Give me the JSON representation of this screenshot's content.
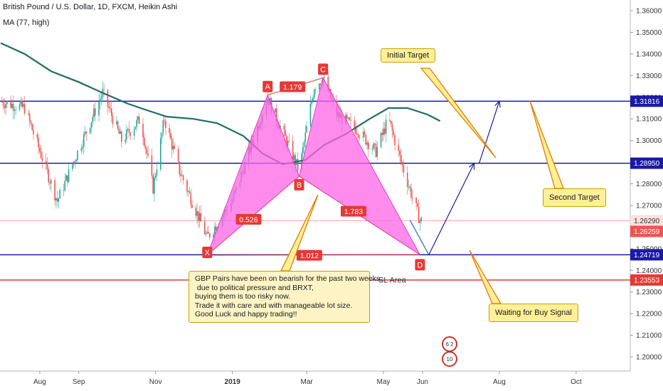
{
  "header": {
    "title": "British Pound / U.S. Dollar, 1D, FXCM, Heikin Ashi",
    "indicator": "MA (77, high)"
  },
  "chart_data": {
    "type": "candlestick",
    "instrument": "GBPUSD",
    "y_axis": {
      "position": "right",
      "range": [
        1.1942,
        1.3658
      ],
      "ticks": [
        1.36,
        1.35,
        1.34,
        1.33,
        1.32,
        1.31,
        1.3,
        1.29,
        1.28,
        1.27,
        1.26,
        1.25,
        1.24,
        1.23,
        1.22,
        1.21,
        1.2
      ],
      "tick_labels": [
        "1.36000",
        "1.35000",
        "1.34000",
        "1.33000",
        "1.32000",
        "1.31000",
        "1.30000",
        "1.29000",
        "1.28000",
        "1.27000",
        "1.26000",
        "1.25000",
        "1.24000",
        "1.23000",
        "1.22000",
        "1.21000",
        "1.20000"
      ]
    },
    "x_axis": {
      "labels": [
        "Aug",
        "Sep",
        "Nov",
        "2019",
        "Mar",
        "May",
        "Jun",
        "Aug",
        "Oct"
      ],
      "bold_labels": [
        "2019"
      ],
      "label_dates": [
        "2018-08-01",
        "2018-09-01",
        "2018-11-01",
        "2019-01-01",
        "2019-03-01",
        "2019-05-01",
        "2019-06-01",
        "2019-08-01",
        "2019-10-01"
      ]
    },
    "candles": {
      "start_date": "2018-07-01",
      "end_date": "2019-05-31",
      "up_color": "#26a69a",
      "down_color": "#ef5350"
    },
    "moving_average": {
      "label": "MA (77, high)",
      "color": "#1f6e5e",
      "points": [
        [
          "2018-07-01",
          1.345
        ],
        [
          "2018-07-20",
          1.34
        ],
        [
          "2018-08-10",
          1.332
        ],
        [
          "2018-09-01",
          1.327
        ],
        [
          "2018-09-20",
          1.322
        ],
        [
          "2018-10-10",
          1.317
        ],
        [
          "2018-10-25",
          1.314
        ],
        [
          "2018-11-10",
          1.311
        ],
        [
          "2018-12-01",
          1.31
        ],
        [
          "2018-12-20",
          1.308
        ],
        [
          "2019-01-10",
          1.302
        ],
        [
          "2019-01-25",
          1.294
        ],
        [
          "2019-02-10",
          1.289
        ],
        [
          "2019-02-28",
          1.291
        ],
        [
          "2019-03-15",
          1.298
        ],
        [
          "2019-04-01",
          1.303
        ],
        [
          "2019-04-20",
          1.31
        ],
        [
          "2019-05-05",
          1.315
        ],
        [
          "2019-05-20",
          1.315
        ],
        [
          "2019-06-05",
          1.312
        ],
        [
          "2019-06-15",
          1.309
        ]
      ]
    },
    "horizontal_lines": [
      {
        "price": 1.31816,
        "color": "#1a1aa6",
        "label": "1.31816"
      },
      {
        "price": 1.2895,
        "color": "#1a1aa6",
        "label": "1.28950"
      },
      {
        "price": 1.24719,
        "color": "#1a1aa6",
        "label": "1.24719"
      },
      {
        "price": 1.23553,
        "color": "#e53935",
        "label": "1.23553"
      },
      {
        "price": 1.2629,
        "color": "#f7a6a6",
        "label": "1.26290"
      }
    ],
    "price_labels": [
      {
        "price": 1.26259,
        "label": "1.26259",
        "color": "#ef5350"
      }
    ],
    "harmonic_pattern": {
      "fill_color": "#ff66e6",
      "points": {
        "X": {
          "date": "2018-12-12",
          "price": 1.247
        },
        "A": {
          "date": "2019-01-29",
          "price": 1.321
        },
        "B": {
          "date": "2019-02-23",
          "price": 1.2835
        },
        "C": {
          "date": "2019-03-14",
          "price": 1.329
        },
        "D": {
          "date": "2019-05-30",
          "price": 1.2472
        }
      },
      "point_labels": [
        "X",
        "A",
        "B",
        "C",
        "D"
      ],
      "ratios": {
        "AC": "1.179",
        "XB": "0.526",
        "BD": "1.783",
        "XD": "1.012"
      }
    },
    "projection": {
      "color": "#1a1aa6",
      "points": [
        [
          "2019-05-31",
          1.2472
        ],
        [
          "2019-06-06",
          1.2472
        ],
        [
          "2019-07-12",
          1.2895
        ],
        [
          "2019-07-16",
          1.2895
        ],
        [
          "2019-08-01",
          1.3182
        ]
      ],
      "lead_in_color": "#4f7fd6",
      "lead_in": [
        [
          "2019-05-22",
          1.2632
        ],
        [
          "2019-06-06",
          1.2472
        ]
      ]
    },
    "sl_area": {
      "label": "SL Area",
      "price": 1.23553
    }
  },
  "annotations": {
    "initial_target": "Initial Target",
    "second_target": "Second Target",
    "waiting": "Waiting for Buy Signal",
    "sl_area": "SL Area",
    "note": "GBP Pairs have been on bearish for the past two weeks,\n due to political pressure and BRXT,\nbuying them is too risky now.\nTrade it with care and with manageable lot size.\nGood Luck and happy trading!!"
  },
  "badges": {
    "top": "6 2",
    "bottom": "10"
  },
  "colors": {
    "accent_blue": "#1a1aa6",
    "callout_fill": "#ffef99",
    "arrow_orange": "#e07b00"
  }
}
